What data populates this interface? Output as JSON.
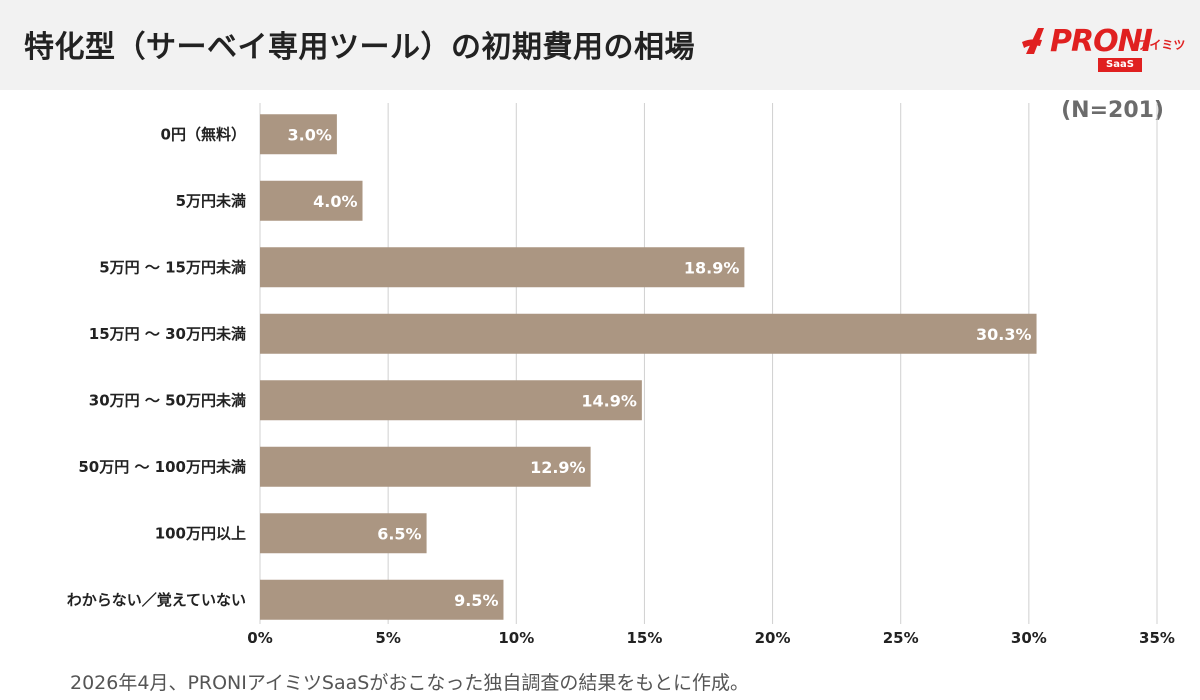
{
  "header": {
    "title": "特化型（サーベイ専用ツール）の初期費用の相場",
    "logo_text": "PRONI",
    "logo_sub": "アイミツ",
    "logo_badge": "SaaS"
  },
  "note": "(N=201)",
  "footer": "2026年4月、PRONIアイミツSaaSがおこなった独自調査の結果をもとに作成。",
  "colors": {
    "bar": "#ab9682",
    "grid": "#d0d0d0",
    "header_bg": "#f2f2f2",
    "brand": "#e02020"
  },
  "chart_data": {
    "type": "bar",
    "orientation": "horizontal",
    "categories": [
      "0円（無料）",
      "5万円未満",
      "5万円 〜 15万円未満",
      "15万円 〜 30万円未満",
      "30万円 〜 50万円未満",
      "50万円 〜 100万円未満",
      "100万円以上",
      "わからない／覚えていない"
    ],
    "values": [
      3.0,
      4.0,
      18.9,
      30.3,
      14.9,
      12.9,
      6.5,
      9.5
    ],
    "value_labels": [
      "3.0%",
      "4.0%",
      "18.9%",
      "30.3%",
      "14.9%",
      "12.9%",
      "6.5%",
      "9.5%"
    ],
    "xlim": [
      0,
      35
    ],
    "xticks": [
      0,
      5,
      10,
      15,
      20,
      25,
      30,
      35
    ],
    "xtick_labels": [
      "0%",
      "5%",
      "10%",
      "15%",
      "20%",
      "25%",
      "30%",
      "35%"
    ],
    "grid": true,
    "legend": "none"
  }
}
